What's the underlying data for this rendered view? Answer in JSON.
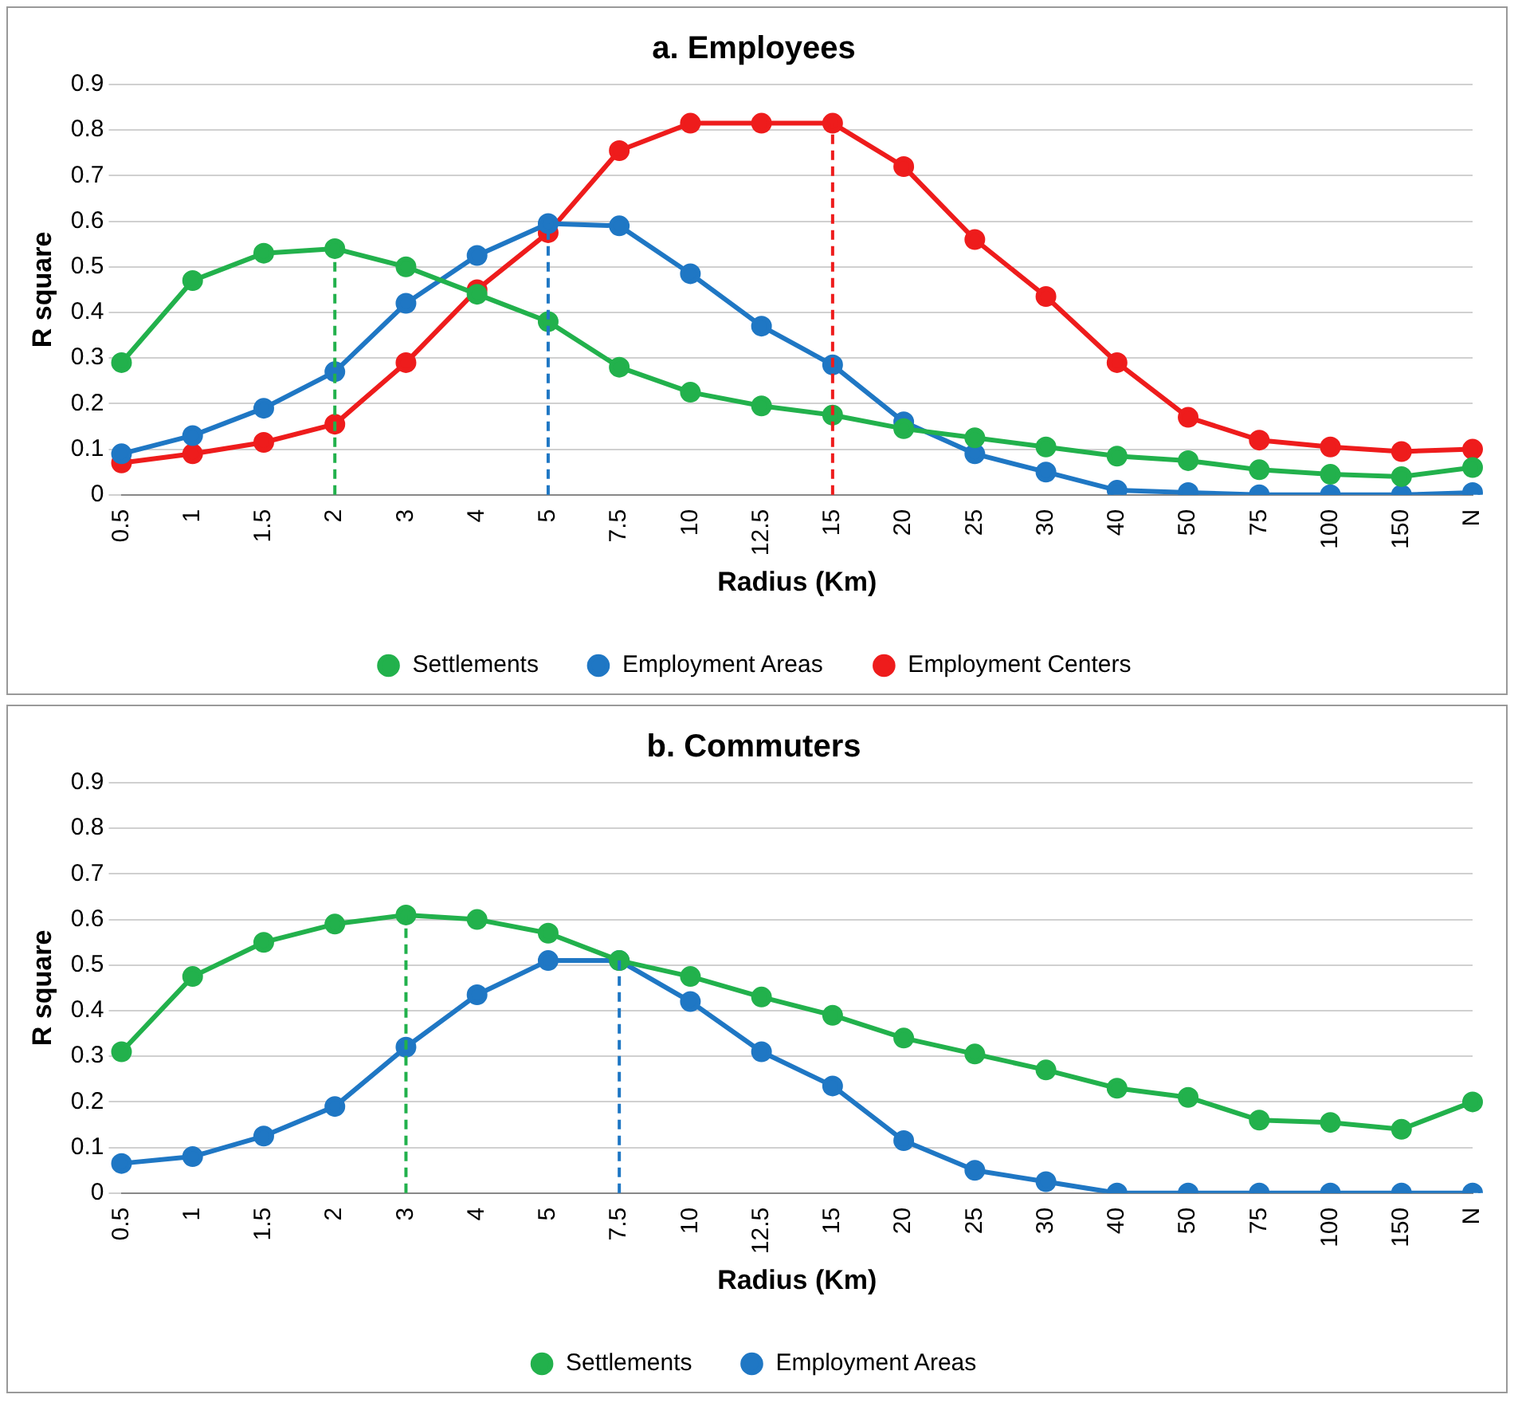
{
  "chart_data": [
    {
      "type": "line",
      "title": "a. Employees",
      "xlabel": "Radius (Km)",
      "ylabel": "R square",
      "categories": [
        "0.5",
        "1",
        "1.5",
        "2",
        "3",
        "4",
        "5",
        "7.5",
        "10",
        "12.5",
        "15",
        "20",
        "25",
        "30",
        "40",
        "50",
        "75",
        "100",
        "150",
        "N"
      ],
      "series": [
        {
          "name": "Settlements",
          "color": "#22b14c",
          "values": [
            0.29,
            0.47,
            0.53,
            0.54,
            0.5,
            0.44,
            0.38,
            0.28,
            0.225,
            0.195,
            0.175,
            0.145,
            0.125,
            0.105,
            0.085,
            0.075,
            0.055,
            0.045,
            0.04,
            0.06
          ]
        },
        {
          "name": "Employment Areas",
          "color": "#1f77c4",
          "values": [
            0.09,
            0.13,
            0.19,
            0.27,
            0.42,
            0.525,
            0.595,
            0.59,
            0.485,
            0.37,
            0.285,
            0.16,
            0.09,
            0.05,
            0.01,
            0.005,
            0,
            0,
            0,
            0.005
          ]
        },
        {
          "name": "Employment Centers",
          "color": "#ee1c1c",
          "values": [
            0.07,
            0.09,
            0.115,
            0.155,
            0.29,
            0.45,
            0.575,
            0.755,
            0.815,
            0.815,
            0.815,
            0.72,
            0.56,
            0.435,
            0.29,
            0.17,
            0.12,
            0.105,
            0.095,
            0.1
          ]
        }
      ],
      "ylim": [
        0,
        0.9
      ],
      "yticks": [
        0,
        0.1,
        0.2,
        0.3,
        0.4,
        0.5,
        0.6,
        0.7,
        0.8,
        0.9
      ],
      "grid": "y",
      "legend": "bottom",
      "marker": "circle",
      "ref_lines": [
        {
          "axis": "x",
          "value": "2",
          "color": "#22b14c",
          "line_style": "dashed"
        },
        {
          "axis": "x",
          "value": "5",
          "color": "#1f77c4",
          "line_style": "dashed"
        },
        {
          "axis": "x",
          "value": "15",
          "color": "#ee1c1c",
          "line_style": "dashed"
        }
      ]
    },
    {
      "type": "line",
      "title": "b. Commuters",
      "xlabel": "Radius (Km)",
      "ylabel": "R square",
      "categories": [
        "0.5",
        "1",
        "1.5",
        "2",
        "3",
        "4",
        "5",
        "7.5",
        "10",
        "12.5",
        "15",
        "20",
        "25",
        "30",
        "40",
        "50",
        "75",
        "100",
        "150",
        "N"
      ],
      "series": [
        {
          "name": "Settlements",
          "color": "#22b14c",
          "values": [
            0.31,
            0.475,
            0.55,
            0.59,
            0.61,
            0.6,
            0.57,
            0.51,
            0.475,
            0.43,
            0.39,
            0.34,
            0.305,
            0.27,
            0.23,
            0.21,
            0.16,
            0.155,
            0.14,
            0.2
          ]
        },
        {
          "name": "Employment Areas",
          "color": "#1f77c4",
          "values": [
            0.065,
            0.08,
            0.125,
            0.19,
            0.32,
            0.435,
            0.51,
            0.51,
            0.42,
            0.31,
            0.235,
            0.115,
            0.05,
            0.025,
            0,
            0,
            0,
            0,
            0,
            0
          ]
        }
      ],
      "ylim": [
        0,
        0.9
      ],
      "yticks": [
        0,
        0.1,
        0.2,
        0.3,
        0.4,
        0.5,
        0.6,
        0.7,
        0.8,
        0.9
      ],
      "grid": "y",
      "legend": "bottom",
      "marker": "circle",
      "ref_lines": [
        {
          "axis": "x",
          "value": "3",
          "color": "#22b14c",
          "line_style": "dashed"
        },
        {
          "axis": "x",
          "value": "7.5",
          "color": "#1f77c4",
          "line_style": "dashed"
        }
      ]
    }
  ]
}
